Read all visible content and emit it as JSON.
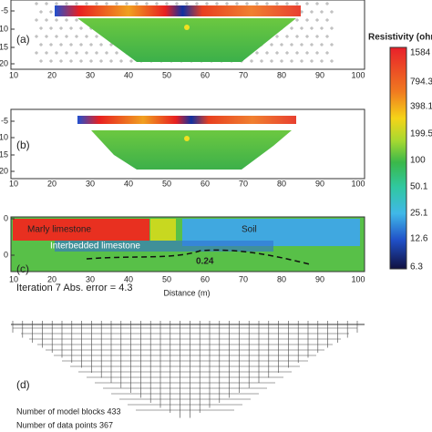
{
  "panels": [
    {
      "label": "(a)",
      "y_ticks": [
        "-5",
        "-10",
        "-15",
        "-20"
      ],
      "x_ticks": [
        "10",
        "20",
        "30",
        "40",
        "50",
        "60",
        "70",
        "80",
        "90",
        "100"
      ]
    },
    {
      "label": "(b)",
      "y_ticks": [
        "-5",
        "-10",
        "-15",
        "-20"
      ],
      "x_ticks": [
        "10",
        "20",
        "30",
        "40",
        "50",
        "60",
        "70",
        "80",
        "90",
        "100"
      ]
    },
    {
      "label": "(c)",
      "y_ticks": [
        "0",
        "0"
      ],
      "x_ticks": [
        "10",
        "20",
        "30",
        "40",
        "50",
        "60",
        "70",
        "80",
        "90",
        "100"
      ],
      "x_label": "Distance (m)",
      "annotations": [
        "Marly limestone",
        "Soil",
        "Interbedded limestone",
        "0.24",
        "Iteration 7 Abs. error = 4.3"
      ]
    },
    {
      "label": "(d)",
      "notes": [
        "Number of model blocks 433",
        "Number of data points 367"
      ]
    }
  ],
  "colorbar": {
    "title": "Resistivity (ohm",
    "labels": [
      "1584",
      "794.3",
      "398.1",
      "199.5",
      "100",
      "50.1",
      "25.1",
      "12.6",
      "6.3"
    ]
  }
}
